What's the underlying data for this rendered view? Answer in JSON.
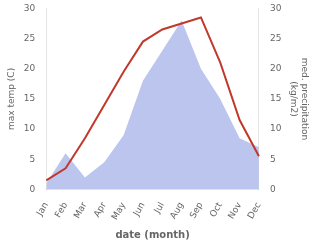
{
  "chart_data": {
    "type": "line",
    "categories": [
      "Jan",
      "Feb",
      "Mar",
      "Apr",
      "May",
      "Jun",
      "Jul",
      "Aug",
      "Sep",
      "Oct",
      "Nov",
      "Dec"
    ],
    "series": [
      {
        "type": "area",
        "axis": "y2",
        "color": "#bcc5ee",
        "values": [
          1.0,
          6.0,
          2.0,
          4.5,
          9.0,
          18.0,
          23.0,
          28.0,
          20.0,
          15.0,
          8.5,
          7.0
        ]
      },
      {
        "type": "line",
        "color": "#c0392b",
        "values": [
          1.5,
          3.5,
          8.5,
          14.0,
          19.5,
          24.5,
          26.5,
          27.5,
          28.5,
          21.0,
          11.5,
          5.5
        ]
      }
    ],
    "xlabel": "date (month)",
    "ylabel": "max temp (C)",
    "y2label": "med. precipitation\n(kg/m2)",
    "ylim": [
      0,
      30
    ],
    "yticks": [
      0,
      5,
      10,
      15,
      20,
      25,
      30
    ],
    "y2lim": [
      0,
      30
    ],
    "y2ticks": [
      0,
      5,
      10,
      15,
      20,
      25,
      30
    ],
    "grid": false
  }
}
